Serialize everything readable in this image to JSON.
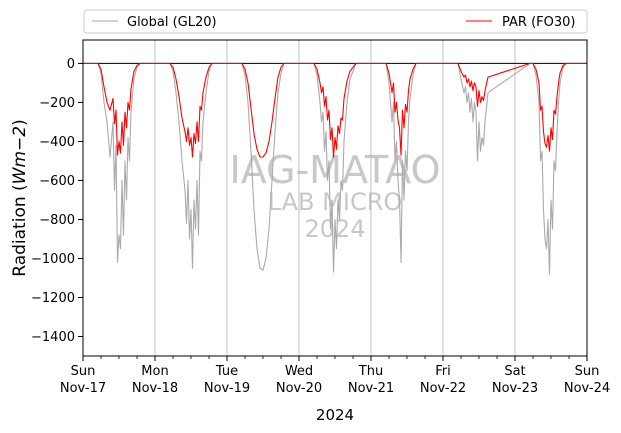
{
  "chart_data": {
    "type": "line",
    "ylabel_prefix": "Radiation (",
    "ylabel_unit": "Wm−2",
    "ylabel_suffix": ")",
    "xlabel": "2024",
    "ylim": [
      -1500,
      120
    ],
    "yticks": [
      0,
      -200,
      -400,
      -600,
      -800,
      -1000,
      -1200,
      -1400
    ],
    "xlim": [
      0,
      168
    ],
    "x_unit": "hours since Sun Nov-17 00:00",
    "x_ticks": [
      {
        "x": 0,
        "day": "Sun",
        "date": "Nov-17"
      },
      {
        "x": 24,
        "day": "Mon",
        "date": "Nov-18"
      },
      {
        "x": 48,
        "day": "Tue",
        "date": "Nov-19"
      },
      {
        "x": 72,
        "day": "Wed",
        "date": "Nov-20"
      },
      {
        "x": 96,
        "day": "Thu",
        "date": "Nov-21"
      },
      {
        "x": 120,
        "day": "Fri",
        "date": "Nov-22"
      },
      {
        "x": 144,
        "day": "Sat",
        "date": "Nov-23"
      },
      {
        "x": 168,
        "day": "Sun",
        "date": "Nov-24"
      }
    ],
    "grid": "vertical major",
    "legend_placement": "top, above plot",
    "watermark": [
      "IAG-MATAO",
      "LAB MICRO",
      "2024"
    ],
    "series": [
      {
        "name": "Global (GL20)",
        "color": "#aaaaaa",
        "x": [
          0,
          5,
          6,
          7,
          8,
          9,
          10,
          10.5,
          11,
          11.5,
          12,
          12.5,
          13,
          13.5,
          14,
          14.5,
          15,
          15.5,
          16,
          17,
          18,
          19,
          29,
          30,
          31,
          32,
          33,
          34,
          34.5,
          35,
          35.5,
          36,
          36.5,
          37,
          37.5,
          38,
          38.5,
          39,
          39.5,
          40,
          41,
          42,
          43,
          53,
          54,
          55,
          56,
          57,
          58,
          59,
          60,
          61,
          62,
          63,
          64,
          65,
          66,
          67,
          77,
          78,
          79,
          79.5,
          80,
          80.5,
          81,
          81.5,
          82,
          82.5,
          83,
          83.5,
          84,
          84.5,
          85,
          85.5,
          86,
          86.5,
          87,
          88,
          89,
          91,
          101,
          102,
          103,
          103.5,
          104,
          104.5,
          105,
          105.5,
          106,
          106.5,
          107,
          107.5,
          108,
          108.5,
          109,
          110,
          111,
          125,
          126,
          127,
          127.5,
          128,
          128.5,
          129,
          129.5,
          130,
          130.5,
          131,
          131.5,
          132,
          132.5,
          133,
          133.5,
          134,
          135,
          149,
          150,
          151,
          152,
          152.5,
          153,
          153.5,
          154,
          154.5,
          155,
          155.5,
          156,
          156.5,
          157,
          157.5,
          158,
          158.5,
          159,
          160,
          161,
          168
        ],
        "y": [
          0,
          0,
          -50,
          -200,
          -300,
          -480,
          -300,
          -650,
          -420,
          -1020,
          -880,
          -950,
          -600,
          -880,
          -500,
          -700,
          -380,
          -500,
          -250,
          -80,
          -20,
          0,
          0,
          -40,
          -150,
          -300,
          -500,
          -650,
          -820,
          -600,
          -900,
          -750,
          -1050,
          -700,
          -850,
          -600,
          -880,
          -450,
          -500,
          -300,
          -150,
          -40,
          0,
          0,
          -60,
          -200,
          -450,
          -750,
          -950,
          -1050,
          -1060,
          -1000,
          -850,
          -600,
          -350,
          -150,
          -50,
          0,
          0,
          -60,
          -200,
          -300,
          -250,
          -450,
          -350,
          -600,
          -500,
          -850,
          -700,
          -1070,
          -800,
          -950,
          -700,
          -800,
          -600,
          -650,
          -400,
          -200,
          -80,
          0,
          0,
          -100,
          -300,
          -200,
          -500,
          -400,
          -600,
          -700,
          -1020,
          -500,
          -700,
          -450,
          -550,
          -300,
          -180,
          -60,
          0,
          0,
          -80,
          -150,
          -120,
          -200,
          -150,
          -250,
          -180,
          -300,
          -200,
          -250,
          -500,
          -300,
          -450,
          -380,
          -420,
          -300,
          -150,
          0,
          0,
          -60,
          -200,
          -500,
          -450,
          -750,
          -900,
          -950,
          -800,
          -1080,
          -700,
          -850,
          -500,
          -550,
          -350,
          -200,
          -100,
          -20,
          0,
          0
        ]
      },
      {
        "name": "PAR (FO30)",
        "color": "#ff0000",
        "x": [
          0,
          5,
          6,
          7,
          8,
          9,
          10,
          10.5,
          11,
          11.5,
          12,
          12.5,
          13,
          13.5,
          14,
          14.5,
          15,
          15.5,
          16,
          17,
          18,
          19,
          29,
          30,
          31,
          32,
          33,
          34,
          34.5,
          35,
          35.5,
          36,
          36.5,
          37,
          37.5,
          38,
          38.5,
          39,
          39.5,
          40,
          41,
          42,
          43,
          53,
          54,
          55,
          56,
          57,
          58,
          59,
          60,
          61,
          62,
          63,
          64,
          65,
          66,
          67,
          77,
          78,
          79,
          79.5,
          80,
          80.5,
          81,
          81.5,
          82,
          82.5,
          83,
          83.5,
          84,
          84.5,
          85,
          85.5,
          86,
          86.5,
          87,
          88,
          89,
          91,
          101,
          102,
          103,
          103.5,
          104,
          104.5,
          105,
          105.5,
          106,
          106.5,
          107,
          107.5,
          108,
          108.5,
          109,
          110,
          111,
          125,
          126,
          127,
          127.5,
          128,
          128.5,
          129,
          129.5,
          130,
          130.5,
          131,
          131.5,
          132,
          132.5,
          133,
          133.5,
          134,
          135,
          149,
          150,
          151,
          152,
          152.5,
          153,
          153.5,
          154,
          154.5,
          155,
          155.5,
          156,
          156.5,
          157,
          157.5,
          158,
          158.5,
          159,
          160,
          161,
          168
        ],
        "y": [
          0,
          0,
          -30,
          -120,
          -200,
          -240,
          -180,
          -310,
          -240,
          -470,
          -400,
          -460,
          -300,
          -420,
          -250,
          -330,
          -200,
          -240,
          -130,
          -40,
          -10,
          0,
          0,
          -20,
          -80,
          -170,
          -280,
          -350,
          -400,
          -330,
          -420,
          -380,
          -480,
          -360,
          -410,
          -300,
          -400,
          -220,
          -240,
          -150,
          -70,
          -20,
          0,
          0,
          -30,
          -100,
          -230,
          -360,
          -440,
          -480,
          -480,
          -460,
          -400,
          -300,
          -180,
          -70,
          -20,
          0,
          0,
          -30,
          -100,
          -150,
          -120,
          -220,
          -170,
          -290,
          -240,
          -390,
          -330,
          -480,
          -380,
          -440,
          -320,
          -360,
          -280,
          -290,
          -180,
          -90,
          -40,
          0,
          0,
          -50,
          -150,
          -100,
          -250,
          -200,
          -290,
          -330,
          -470,
          -240,
          -330,
          -210,
          -250,
          -140,
          -80,
          -30,
          0,
          0,
          -40,
          -70,
          -60,
          -100,
          -80,
          -120,
          -90,
          -140,
          -100,
          -120,
          -220,
          -140,
          -200,
          -170,
          -190,
          -140,
          -70,
          0,
          0,
          -30,
          -100,
          -240,
          -220,
          -350,
          -410,
          -430,
          -370,
          -450,
          -330,
          -390,
          -240,
          -260,
          -170,
          -100,
          -50,
          -10,
          0,
          0
        ]
      }
    ]
  }
}
